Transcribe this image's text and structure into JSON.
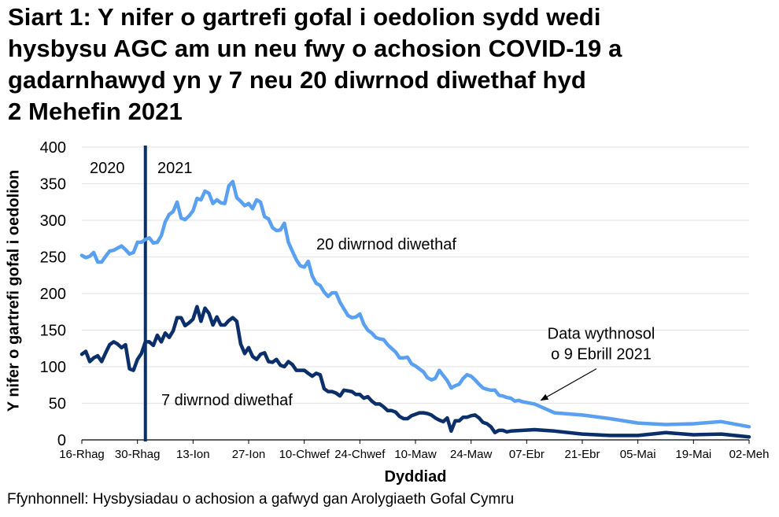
{
  "title_lines": [
    "Siart 1: Y nifer o gartrefi gofal i oedolion sydd wedi",
    "hysbysu AGC am un neu fwy o achosion COVID-19 a",
    "gadarnhawyd yn y 7 neu 20 diwrnod diwethaf hyd",
    "2 Mehefin 2021"
  ],
  "source": "Ffynhonnell: Hysbysiadau o achosion a gafwyd gan Arolygiaeth Gofal Cymru",
  "colors": {
    "series_20day": "#5aa0f0",
    "series_7day": "#0b2f6b",
    "year_divider": "#0b2f6b",
    "gridline": "#e6e6e6",
    "axis": "#000000"
  },
  "chart_data": {
    "type": "line",
    "title": "Siart 1: Y nifer o gartrefi gofal i oedolion sydd wedi hysbysu AGC am un neu fwy o achosion COVID-19 a gadarnhawyd yn y 7 neu 20 diwrnod diwethaf hyd 2 Mehefin 2021",
    "xlabel": "Dyddiad",
    "ylabel": "Y nifer o gartrefi gofal i oedolion",
    "ylim": [
      0,
      400
    ],
    "yticks": [
      0,
      50,
      100,
      150,
      200,
      250,
      300,
      350,
      400
    ],
    "xlim_days": [
      0,
      168
    ],
    "xticks": [
      {
        "day": 0,
        "label": "16-Rhag"
      },
      {
        "day": 14,
        "label": "30-Rhag"
      },
      {
        "day": 28,
        "label": "13-Ion"
      },
      {
        "day": 42,
        "label": "27-Ion"
      },
      {
        "day": 56,
        "label": "10-Chwef"
      },
      {
        "day": 70,
        "label": "24-Chwef"
      },
      {
        "day": 84,
        "label": "10-Maw"
      },
      {
        "day": 98,
        "label": "24-Maw"
      },
      {
        "day": 112,
        "label": "07-Ebr"
      },
      {
        "day": 126,
        "label": "21-Ebr"
      },
      {
        "day": 140,
        "label": "05-Mai"
      },
      {
        "day": 154,
        "label": "19-Mai"
      },
      {
        "day": 168,
        "label": "02-Meh"
      }
    ],
    "grid": true,
    "legend": "inline labels",
    "annotations": [
      {
        "text": "2020",
        "day": 7,
        "value": 372
      },
      {
        "text": "2021",
        "day": 24,
        "value": 372
      },
      {
        "text": "20 diwrnod diwethaf",
        "day": 80,
        "value": 268
      },
      {
        "text": "7 diwrnod diwethaf",
        "day": 32,
        "value": 55
      },
      {
        "text_lines": [
          "Data wythnosol",
          "o 9 Ebrill 2021"
        ],
        "day": 126,
        "value": 138,
        "arrow_to": {
          "day": 114,
          "value": 52
        }
      }
    ],
    "year_divider_day": 16,
    "series": [
      {
        "name": "20 diwrnod diwethaf",
        "color": "#5aa0f0",
        "points": [
          [
            0,
            252
          ],
          [
            1,
            249
          ],
          [
            2,
            251
          ],
          [
            3,
            256
          ],
          [
            4,
            243
          ],
          [
            5,
            243
          ],
          [
            6,
            251
          ],
          [
            7,
            258
          ],
          [
            8,
            259
          ],
          [
            9,
            262
          ],
          [
            10,
            265
          ],
          [
            11,
            260
          ],
          [
            12,
            254
          ],
          [
            13,
            256
          ],
          [
            14,
            270
          ],
          [
            15,
            270
          ],
          [
            16,
            274
          ],
          [
            17,
            276
          ],
          [
            18,
            269
          ],
          [
            19,
            270
          ],
          [
            20,
            279
          ],
          [
            21,
            298
          ],
          [
            22,
            308
          ],
          [
            23,
            312
          ],
          [
            24,
            325
          ],
          [
            25,
            303
          ],
          [
            26,
            301
          ],
          [
            27,
            306
          ],
          [
            28,
            313
          ],
          [
            29,
            330
          ],
          [
            30,
            328
          ],
          [
            31,
            340
          ],
          [
            32,
            337
          ],
          [
            33,
            323
          ],
          [
            34,
            328
          ],
          [
            35,
            324
          ],
          [
            36,
            323
          ],
          [
            37,
            347
          ],
          [
            38,
            353
          ],
          [
            39,
            331
          ],
          [
            40,
            326
          ],
          [
            41,
            320
          ],
          [
            42,
            323
          ],
          [
            43,
            316
          ],
          [
            44,
            328
          ],
          [
            45,
            325
          ],
          [
            46,
            305
          ],
          [
            47,
            302
          ],
          [
            48,
            290
          ],
          [
            49,
            286
          ],
          [
            50,
            287
          ],
          [
            51,
            296
          ],
          [
            52,
            270
          ],
          [
            53,
            258
          ],
          [
            54,
            246
          ],
          [
            55,
            238
          ],
          [
            56,
            236
          ],
          [
            57,
            244
          ],
          [
            58,
            224
          ],
          [
            59,
            214
          ],
          [
            60,
            211
          ],
          [
            61,
            202
          ],
          [
            62,
            196
          ],
          [
            63,
            201
          ],
          [
            64,
            201
          ],
          [
            65,
            188
          ],
          [
            66,
            179
          ],
          [
            67,
            170
          ],
          [
            68,
            167
          ],
          [
            69,
            168
          ],
          [
            70,
            172
          ],
          [
            71,
            158
          ],
          [
            72,
            150
          ],
          [
            73,
            146
          ],
          [
            74,
            140
          ],
          [
            75,
            138
          ],
          [
            76,
            137
          ],
          [
            77,
            130
          ],
          [
            78,
            125
          ],
          [
            79,
            120
          ],
          [
            80,
            112
          ],
          [
            81,
            112
          ],
          [
            82,
            113
          ],
          [
            83,
            104
          ],
          [
            84,
            101
          ],
          [
            85,
            97
          ],
          [
            86,
            93
          ],
          [
            87,
            85
          ],
          [
            88,
            82
          ],
          [
            89,
            84
          ],
          [
            90,
            95
          ],
          [
            91,
            88
          ],
          [
            92,
            81
          ],
          [
            93,
            71
          ],
          [
            94,
            74
          ],
          [
            95,
            76
          ],
          [
            96,
            84
          ],
          [
            97,
            89
          ],
          [
            98,
            87
          ],
          [
            99,
            82
          ],
          [
            100,
            76
          ],
          [
            101,
            71
          ],
          [
            102,
            69
          ],
          [
            103,
            68
          ],
          [
            104,
            68
          ],
          [
            105,
            61
          ],
          [
            106,
            60
          ],
          [
            107,
            58
          ],
          [
            108,
            57
          ],
          [
            109,
            53
          ],
          [
            110,
            54
          ],
          [
            111,
            52
          ],
          [
            114,
            49
          ],
          [
            119,
            37
          ],
          [
            126,
            34
          ],
          [
            133,
            29
          ],
          [
            140,
            23
          ],
          [
            147,
            21
          ],
          [
            154,
            22
          ],
          [
            161,
            25
          ],
          [
            168,
            18
          ]
        ]
      },
      {
        "name": "7 diwrnod diwethaf",
        "color": "#0b2f6b",
        "points": [
          [
            0,
            117
          ],
          [
            1,
            121
          ],
          [
            2,
            107
          ],
          [
            3,
            112
          ],
          [
            4,
            115
          ],
          [
            5,
            107
          ],
          [
            6,
            119
          ],
          [
            7,
            130
          ],
          [
            8,
            134
          ],
          [
            9,
            131
          ],
          [
            10,
            126
          ],
          [
            11,
            130
          ],
          [
            12,
            97
          ],
          [
            13,
            95
          ],
          [
            14,
            110
          ],
          [
            15,
            118
          ],
          [
            16,
            134
          ],
          [
            17,
            134
          ],
          [
            18,
            129
          ],
          [
            19,
            143
          ],
          [
            20,
            134
          ],
          [
            21,
            146
          ],
          [
            22,
            140
          ],
          [
            23,
            149
          ],
          [
            24,
            167
          ],
          [
            25,
            167
          ],
          [
            26,
            156
          ],
          [
            27,
            160
          ],
          [
            28,
            165
          ],
          [
            29,
            182
          ],
          [
            30,
            162
          ],
          [
            31,
            180
          ],
          [
            32,
            173
          ],
          [
            33,
            157
          ],
          [
            34,
            168
          ],
          [
            35,
            157
          ],
          [
            36,
            157
          ],
          [
            37,
            163
          ],
          [
            38,
            167
          ],
          [
            39,
            162
          ],
          [
            40,
            131
          ],
          [
            41,
            118
          ],
          [
            42,
            126
          ],
          [
            43,
            114
          ],
          [
            44,
            110
          ],
          [
            45,
            117
          ],
          [
            46,
            119
          ],
          [
            47,
            107
          ],
          [
            48,
            106
          ],
          [
            49,
            110
          ],
          [
            50,
            102
          ],
          [
            51,
            100
          ],
          [
            52,
            107
          ],
          [
            53,
            103
          ],
          [
            54,
            95
          ],
          [
            55,
            95
          ],
          [
            56,
            95
          ],
          [
            57,
            91
          ],
          [
            58,
            87
          ],
          [
            59,
            91
          ],
          [
            60,
            89
          ],
          [
            61,
            70
          ],
          [
            62,
            66
          ],
          [
            63,
            66
          ],
          [
            64,
            64
          ],
          [
            65,
            60
          ],
          [
            66,
            68
          ],
          [
            67,
            67
          ],
          [
            68,
            66
          ],
          [
            69,
            62
          ],
          [
            70,
            62
          ],
          [
            71,
            57
          ],
          [
            72,
            59
          ],
          [
            73,
            53
          ],
          [
            74,
            49
          ],
          [
            75,
            49
          ],
          [
            76,
            45
          ],
          [
            77,
            40
          ],
          [
            78,
            40
          ],
          [
            79,
            38
          ],
          [
            80,
            32
          ],
          [
            81,
            29
          ],
          [
            82,
            29
          ],
          [
            83,
            33
          ],
          [
            84,
            35
          ],
          [
            85,
            37
          ],
          [
            86,
            37
          ],
          [
            87,
            36
          ],
          [
            88,
            34
          ],
          [
            89,
            30
          ],
          [
            90,
            27
          ],
          [
            91,
            25
          ],
          [
            92,
            30
          ],
          [
            93,
            12
          ],
          [
            94,
            26
          ],
          [
            95,
            26
          ],
          [
            96,
            31
          ],
          [
            97,
            31
          ],
          [
            98,
            33
          ],
          [
            99,
            34
          ],
          [
            100,
            30
          ],
          [
            101,
            24
          ],
          [
            102,
            22
          ],
          [
            103,
            18
          ],
          [
            104,
            10
          ],
          [
            105,
            13
          ],
          [
            106,
            13
          ],
          [
            107,
            11
          ],
          [
            108,
            12
          ],
          [
            114,
            14
          ],
          [
            119,
            12
          ],
          [
            126,
            8
          ],
          [
            133,
            6
          ],
          [
            140,
            6
          ],
          [
            147,
            10
          ],
          [
            154,
            7
          ],
          [
            161,
            8
          ],
          [
            168,
            4
          ]
        ]
      }
    ]
  }
}
